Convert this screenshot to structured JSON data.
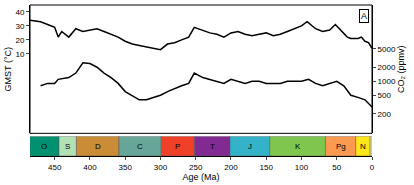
{
  "chart_data": {
    "type": "line",
    "x_label": "Age (Ma)",
    "y_label": "GMST (°C)",
    "y2_label": "CO₂ (ppmv)",
    "xlim": [
      485,
      0
    ],
    "xticks": [
      450,
      400,
      350,
      300,
      250,
      200,
      150,
      100,
      50,
      0
    ],
    "ylim": [
      -47,
      45
    ],
    "yticks": [
      10,
      20,
      30,
      40
    ],
    "y2lim": [
      76,
      43500
    ],
    "y2ticks": [
      200,
      500,
      1000,
      2000,
      5000
    ],
    "log": "y2",
    "grid": false,
    "annotations": [
      "A"
    ],
    "series": [
      {
        "axis": "y",
        "color": "#000000",
        "x": [
          485,
          470,
          460,
          450,
          445,
          440,
          430,
          420,
          410,
          400,
          390,
          380,
          370,
          360,
          350,
          340,
          330,
          320,
          310,
          300,
          290,
          280,
          270,
          260,
          252,
          240,
          230,
          220,
          210,
          200,
          190,
          180,
          170,
          160,
          150,
          140,
          130,
          120,
          110,
          100,
          92,
          80,
          70,
          60,
          52,
          45,
          35,
          30,
          20,
          15,
          10,
          5,
          0
        ],
        "values": [
          34,
          33,
          31,
          29,
          22,
          26,
          22,
          28,
          26,
          27,
          28,
          26,
          24,
          22,
          19,
          17,
          16,
          15,
          14,
          13,
          17,
          18,
          20,
          22,
          29,
          27,
          25,
          24,
          22,
          25,
          26,
          24,
          23,
          24,
          25,
          23,
          24,
          26,
          28,
          30,
          33,
          28,
          26,
          27,
          31,
          27,
          22,
          21,
          21,
          22,
          19,
          18,
          14
        ]
      },
      {
        "axis": "y2",
        "color": "#000000",
        "x": [
          470,
          460,
          450,
          445,
          430,
          420,
          410,
          400,
          390,
          380,
          370,
          360,
          350,
          340,
          330,
          320,
          310,
          300,
          290,
          280,
          270,
          260,
          252,
          240,
          230,
          220,
          210,
          200,
          190,
          180,
          170,
          160,
          150,
          140,
          130,
          120,
          110,
          100,
          90,
          80,
          70,
          60,
          50,
          40,
          30,
          20,
          10,
          0
        ],
        "values": [
          800,
          900,
          900,
          1100,
          1200,
          1500,
          2500,
          2400,
          2000,
          1500,
          1200,
          900,
          600,
          500,
          400,
          400,
          450,
          500,
          600,
          700,
          800,
          900,
          1500,
          1200,
          1100,
          1000,
          900,
          1100,
          1000,
          900,
          1000,
          1000,
          900,
          900,
          900,
          1000,
          1000,
          1000,
          1100,
          900,
          800,
          900,
          1000,
          800,
          500,
          450,
          400,
          280
        ]
      }
    ],
    "timescale": {
      "labels": [
        "O",
        "S",
        "D",
        "C",
        "P",
        "T",
        "J",
        "K",
        "Pg",
        "N",
        null
      ],
      "starts": [
        485.4,
        443.8,
        419.2,
        358.9,
        298.9,
        251.9,
        201.4,
        145,
        66,
        23,
        2.6
      ],
      "ends": [
        443.8,
        419.2,
        358.9,
        298.9,
        251.9,
        201.4,
        145,
        66,
        23,
        2.6,
        0
      ],
      "colors": [
        "#009270",
        "#B3E1B6",
        "#CB8C37",
        "#67A599",
        "#F04028",
        "#812B92",
        "#34B2C9",
        "#7FC64E",
        "#FD9A52",
        "#FFE619",
        "#F9F97F"
      ]
    }
  }
}
